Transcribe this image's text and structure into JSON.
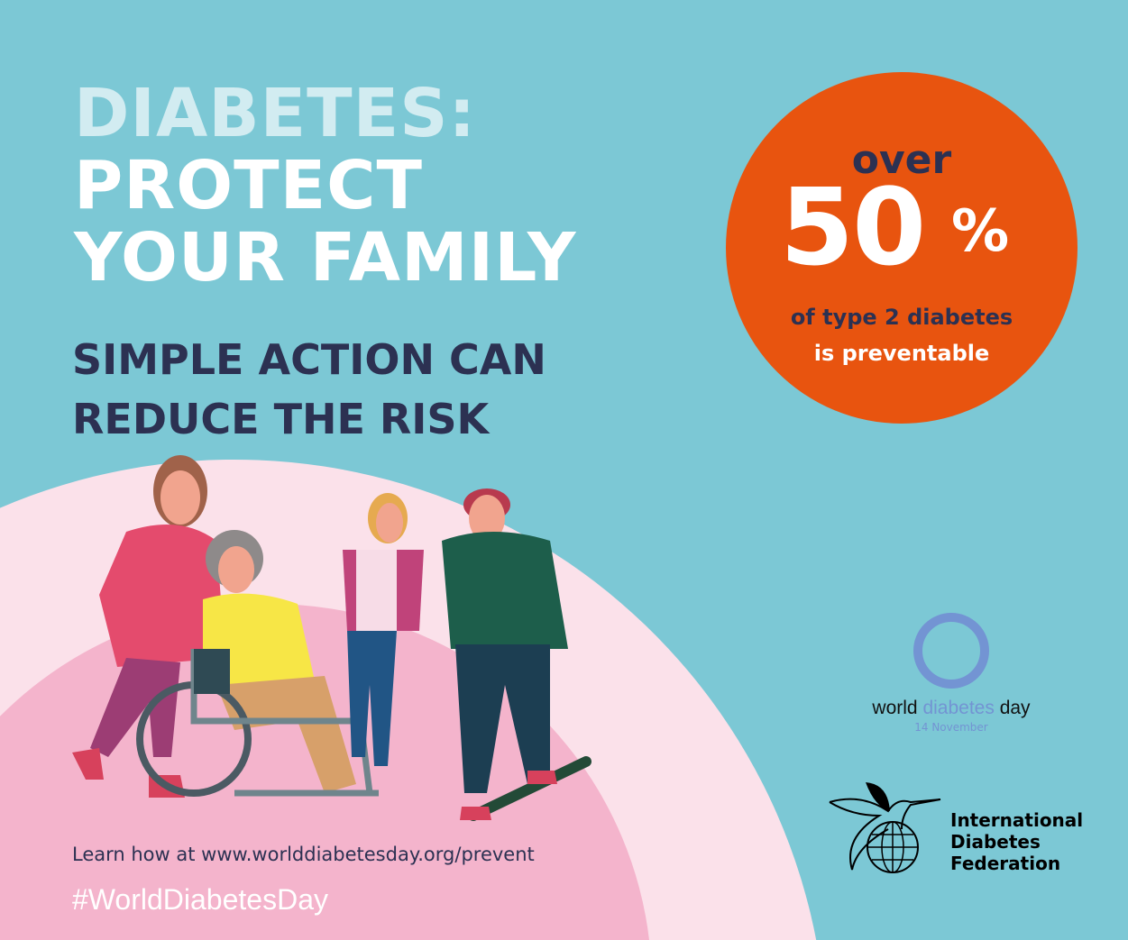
{
  "headline": {
    "line1": "DIABETES:",
    "line2": "PROTECT",
    "line3": "YOUR FAMILY"
  },
  "subheadline": {
    "line1": "SIMPLE ACTION CAN",
    "line2": "REDUCE THE RISK"
  },
  "stat": {
    "prefix": "over",
    "value": "50",
    "unit": "%",
    "caption1": "of type 2 diabetes",
    "caption2": "is preventable"
  },
  "footer": {
    "learn_more": "Learn how at www.worlddiabetesday.org/prevent",
    "hashtag": "#WorldDiabetesDay"
  },
  "wdd_logo": {
    "word1": "world",
    "word2": "diabetes",
    "word3": "day",
    "date": "14 November"
  },
  "idf_logo": {
    "line1": "International",
    "line2": "Diabetes",
    "line3": "Federation",
    "icon": "hummingbird-globe-icon"
  },
  "colors": {
    "background": "#7cc8d5",
    "accent_orange": "#e8540f",
    "navy": "#2c3152",
    "blue_ring": "#7394d3",
    "pink_light": "#fbe1ea",
    "pink_dark": "#f4b4cc"
  }
}
